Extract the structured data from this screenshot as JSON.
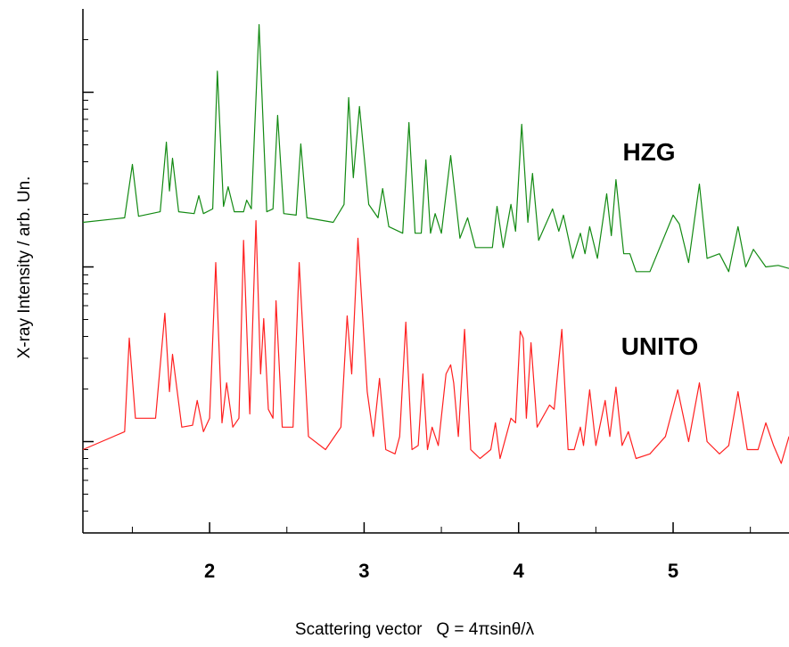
{
  "chart_data": {
    "type": "line",
    "xlabel": "Scattering vector   Q = 4πsinθ/λ",
    "ylabel": "X-ray Intensity / arb. Un.",
    "xlim": [
      1.18,
      5.75
    ],
    "xticks": [
      2,
      3,
      4,
      5
    ],
    "ylim": [
      0.3,
      300
    ],
    "yticks": [
      1,
      10,
      100
    ],
    "ylog": true,
    "series": [
      {
        "name": "HZG",
        "color": "#138a13",
        "x": [
          1.18,
          1.45,
          1.5,
          1.54,
          1.68,
          1.72,
          1.74,
          1.76,
          1.8,
          1.9,
          1.93,
          1.96,
          2.02,
          2.05,
          2.09,
          2.12,
          2.16,
          2.22,
          2.24,
          2.27,
          2.32,
          2.37,
          2.41,
          2.44,
          2.48,
          2.56,
          2.59,
          2.63,
          2.8,
          2.87,
          2.9,
          2.93,
          2.97,
          3.03,
          3.09,
          3.12,
          3.16,
          3.25,
          3.29,
          3.33,
          3.37,
          3.4,
          3.43,
          3.46,
          3.5,
          3.56,
          3.62,
          3.67,
          3.72,
          3.83,
          3.86,
          3.9,
          3.95,
          3.98,
          4.02,
          4.06,
          4.09,
          4.13,
          4.22,
          4.26,
          4.29,
          4.35,
          4.4,
          4.43,
          4.46,
          4.51,
          4.57,
          4.6,
          4.63,
          4.68,
          4.72,
          4.76,
          4.85,
          5.0,
          5.04,
          5.1,
          5.17,
          5.22,
          5.3,
          5.36,
          5.42,
          5.47,
          5.52,
          5.6,
          5.68,
          5.75
        ],
        "values": [
          18.0,
          19.1,
          38.6,
          19.5,
          20.7,
          51.8,
          27.2,
          41.9,
          20.7,
          20.2,
          25.6,
          20.2,
          21.5,
          132,
          22.2,
          28.8,
          20.7,
          20.7,
          24.1,
          21.5,
          244,
          20.7,
          21.5,
          73.7,
          20.2,
          19.8,
          50.6,
          19.1,
          18.0,
          22.8,
          93.2,
          32.4,
          82.9,
          22.8,
          19.1,
          28.1,
          17.0,
          15.6,
          67.1,
          15.6,
          15.6,
          41.0,
          15.6,
          20.2,
          15.6,
          43.4,
          14.6,
          19.1,
          12.9,
          12.9,
          22.2,
          12.9,
          22.8,
          16.0,
          65.5,
          18.0,
          34.3,
          14.2,
          21.5,
          16.0,
          19.8,
          11.2,
          15.6,
          11.9,
          17.0,
          11.2,
          26.2,
          15.1,
          31.6,
          11.9,
          11.9,
          9.4,
          9.4,
          19.8,
          17.6,
          10.6,
          29.8,
          11.2,
          11.9,
          9.4,
          17.0,
          10.0,
          12.6,
          10.0,
          10.2,
          9.8
        ]
      },
      {
        "name": "UNITO",
        "color": "#ff2020",
        "x": [
          1.18,
          1.45,
          1.48,
          1.52,
          1.65,
          1.71,
          1.74,
          1.76,
          1.82,
          1.89,
          1.92,
          1.96,
          2.0,
          2.04,
          2.08,
          2.11,
          2.15,
          2.19,
          2.22,
          2.26,
          2.3,
          2.33,
          2.35,
          2.38,
          2.41,
          2.43,
          2.47,
          2.54,
          2.58,
          2.64,
          2.75,
          2.85,
          2.89,
          2.92,
          2.96,
          3.02,
          3.06,
          3.1,
          3.14,
          3.2,
          3.23,
          3.27,
          3.31,
          3.35,
          3.38,
          3.41,
          3.44,
          3.48,
          3.53,
          3.56,
          3.58,
          3.61,
          3.65,
          3.69,
          3.75,
          3.82,
          3.85,
          3.88,
          3.95,
          3.98,
          4.01,
          4.03,
          4.05,
          4.08,
          4.12,
          4.2,
          4.23,
          4.28,
          4.32,
          4.36,
          4.4,
          4.42,
          4.46,
          4.5,
          4.56,
          4.59,
          4.63,
          4.67,
          4.71,
          4.76,
          4.85,
          4.95,
          5.03,
          5.1,
          5.17,
          5.22,
          5.3,
          5.36,
          5.42,
          5.48,
          5.55,
          5.6,
          5.65,
          5.7,
          5.75
        ],
        "values": [
          0.9,
          1.14,
          3.91,
          1.36,
          1.36,
          5.43,
          1.93,
          3.16,
          1.21,
          1.24,
          1.72,
          1.14,
          1.36,
          10.6,
          1.28,
          2.17,
          1.21,
          1.36,
          14.2,
          1.44,
          18.4,
          2.44,
          5.06,
          1.53,
          1.36,
          6.4,
          1.21,
          1.21,
          10.6,
          1.07,
          0.9,
          1.21,
          5.24,
          2.44,
          14.6,
          1.93,
          1.07,
          2.3,
          0.9,
          0.85,
          1.07,
          4.83,
          0.9,
          0.95,
          2.44,
          0.9,
          1.21,
          0.95,
          2.44,
          2.75,
          2.17,
          1.07,
          4.39,
          0.9,
          0.8,
          0.9,
          1.28,
          0.8,
          1.36,
          1.28,
          4.29,
          3.91,
          1.36,
          3.68,
          1.21,
          1.62,
          1.53,
          4.39,
          0.9,
          0.9,
          1.21,
          0.95,
          1.98,
          0.95,
          1.72,
          1.07,
          2.05,
          0.95,
          1.14,
          0.8,
          0.85,
          1.07,
          1.98,
          1.0,
          2.17,
          1.0,
          0.85,
          0.95,
          1.93,
          0.9,
          0.9,
          1.28,
          0.95,
          0.75,
          1.07
        ]
      }
    ]
  }
}
